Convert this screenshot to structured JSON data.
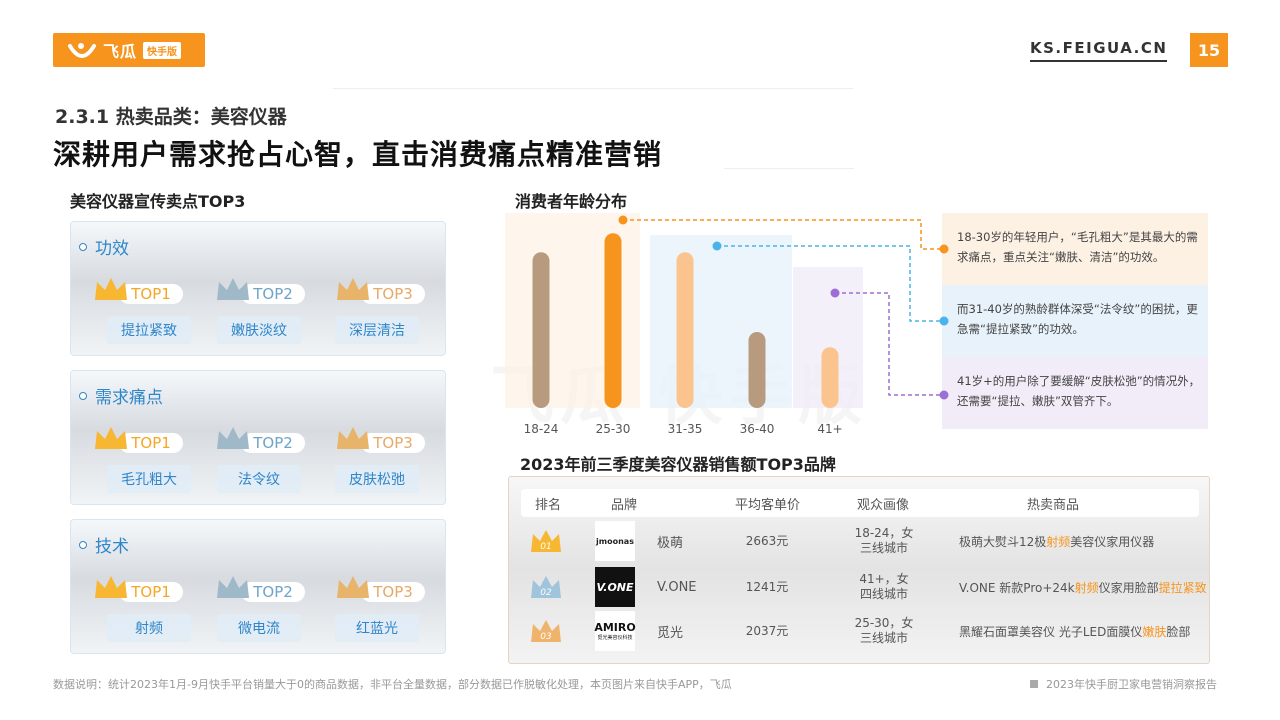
{
  "header": {
    "logo_text": "飞瓜",
    "logo_badge": "快手版",
    "site": "KS.FEIGUA.CN",
    "page_number": "15"
  },
  "section": "2.3.1 热卖品类：美容仪器",
  "headline": "深耕用户需求抢占心智，直击消费痛点精准营销",
  "selling_points": {
    "title": "美容仪器宣传卖点TOP3",
    "ranks": [
      "TOP1",
      "TOP2",
      "TOP3"
    ],
    "cards": [
      {
        "title": "功效",
        "items": [
          "提拉紧致",
          "嫩肤淡纹",
          "深层清洁"
        ]
      },
      {
        "title": "需求痛点",
        "items": [
          "毛孔粗大",
          "法令纹",
          "皮肤松弛"
        ]
      },
      {
        "title": "技术",
        "items": [
          "射频",
          "微电流",
          "红蓝光"
        ]
      }
    ]
  },
  "age_chart": {
    "title": "消费者年龄分布",
    "notes": [
      "18-30岁的年轻用户，“毛孔粗大”是其最大的需求痛点，重点关注“嫩肤、清洁”的功效。",
      "而31-40岁的熟龄群体深受“法令纹”的困扰，更急需“提拉紧致”的功效。",
      "41岁+的用户除了要缓解“皮肤松弛”的情况外，还需要“提拉、嫩肤”双管齐下。"
    ],
    "colors": {
      "orange": "#f7941d",
      "blue": "#4ab3ea",
      "purple": "#9b6fd6"
    }
  },
  "chart_data": {
    "type": "bar",
    "categories": [
      "18-24",
      "25-30",
      "31-35",
      "36-40",
      "41+"
    ],
    "values": [
      82,
      92,
      82,
      40,
      32
    ],
    "title": "消费者年龄分布",
    "xlabel": "",
    "ylabel": "",
    "ylim": [
      0,
      100
    ]
  },
  "brands": {
    "title": "2023年前三季度美容仪器销售额TOP3品牌",
    "columns": [
      "排名",
      "品牌",
      "平均客单价",
      "观众画像",
      "热卖商品"
    ],
    "rows": [
      {
        "rank": "01",
        "logo": "jmoonas",
        "brand": "极萌",
        "price": "2663元",
        "audience": [
          "18-24，女",
          "三线城市"
        ],
        "product": [
          {
            "t": "极萌大熨斗12极"
          },
          {
            "t": "射频",
            "h": true
          },
          {
            "t": "美容仪家用仪器"
          }
        ]
      },
      {
        "rank": "02",
        "logo": "V.ONE",
        "brand": "V.ONE",
        "price": "1241元",
        "audience": [
          "41+，女",
          "四线城市"
        ],
        "product": [
          {
            "t": "V.ONE 新款Pro+24k"
          },
          {
            "t": "射频",
            "h": true
          },
          {
            "t": "仪家用脸部"
          },
          {
            "t": "提拉紧致",
            "h": true
          }
        ]
      },
      {
        "rank": "03",
        "logo": "AMIRO",
        "logo_sub": "觅光美容仪科技",
        "brand": "觅光",
        "price": "2037元",
        "audience": [
          "25-30，女",
          "三线城市"
        ],
        "product": [
          {
            "t": "黑耀石面罩美容仪 光子LED面膜仪"
          },
          {
            "t": "嫩肤",
            "h": true
          },
          {
            "t": "脸部"
          }
        ]
      }
    ]
  },
  "footer": {
    "note": "数据说明：统计2023年1月-9月快手平台销量大于0的商品数据，非平台全量数据，部分数据已作脱敏化处理，本页图片来自快手APP，飞瓜",
    "report": "2023年快手厨卫家电营销洞察报告"
  },
  "watermark": "飞瓜 快手版"
}
